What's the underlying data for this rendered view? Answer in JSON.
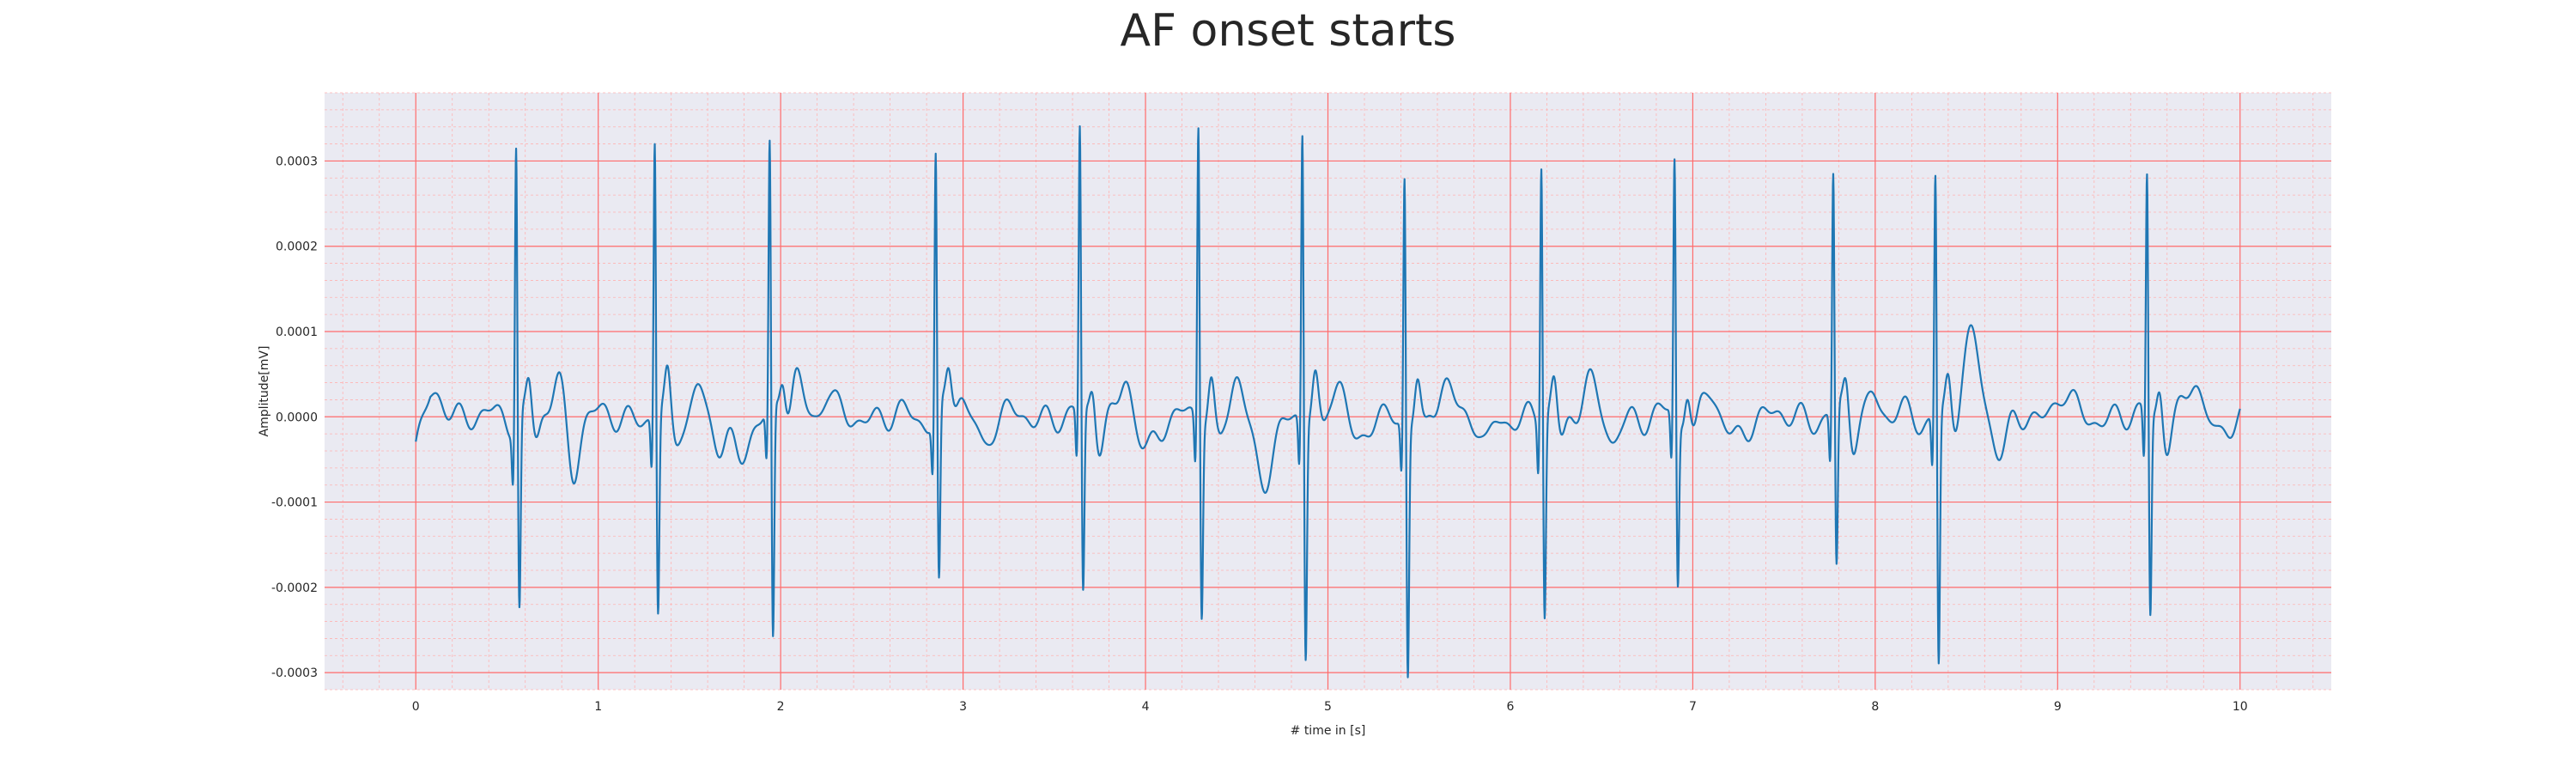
{
  "chart_data": {
    "type": "line",
    "title": "AF onset starts",
    "xlabel": "# time in [s]",
    "ylabel": "Amplitude[mV]",
    "xlim": [
      -0.5,
      10.5
    ],
    "ylim": [
      -0.00032,
      0.00038
    ],
    "x_ticks": [
      0,
      1,
      2,
      3,
      4,
      5,
      6,
      7,
      8,
      9,
      10
    ],
    "x_tick_labels": [
      "0",
      "1",
      "2",
      "3",
      "4",
      "5",
      "6",
      "7",
      "8",
      "9",
      "10"
    ],
    "y_ticks": [
      -0.0003,
      -0.0002,
      -0.0001,
      0.0,
      0.0001,
      0.0002,
      0.0003
    ],
    "y_tick_labels": [
      "-0.0003",
      "-0.0002",
      "-0.0001",
      "0.0000",
      "0.0001",
      "0.0002",
      "0.0003"
    ],
    "grid": true,
    "colors": {
      "background": "#eaeaf2",
      "major_grid": "#ff6b6b",
      "minor_grid": "#ffb3b3",
      "line": "#1f77b4"
    },
    "series": [
      {
        "color": "#1f77b4",
        "beats": [
          {
            "t": 0.55,
            "peak": 0.000338,
            "trough": -0.000228
          },
          {
            "t": 1.31,
            "peak": 0.000333,
            "trough": -0.000235
          },
          {
            "t": 1.94,
            "peak": 0.000318,
            "trough": -0.000282
          },
          {
            "t": 2.85,
            "peak": 0.000315,
            "trough": -0.000208
          },
          {
            "t": 3.64,
            "peak": 0.00034,
            "trough": -0.000218
          },
          {
            "t": 4.29,
            "peak": 0.000355,
            "trough": -0.000227
          },
          {
            "t": 4.86,
            "peak": 0.000346,
            "trough": -0.00028
          },
          {
            "t": 5.42,
            "peak": 0.0003,
            "trough": -0.000296
          },
          {
            "t": 6.17,
            "peak": 0.000312,
            "trough": -0.000235
          },
          {
            "t": 6.9,
            "peak": 0.000306,
            "trough": -0.000198
          },
          {
            "t": 7.77,
            "peak": 0.000285,
            "trough": -0.00019
          },
          {
            "t": 8.33,
            "peak": 0.000295,
            "trough": -0.000295
          },
          {
            "t": 9.49,
            "peak": 0.00029,
            "trough": -0.000237
          }
        ],
        "waves": [
          {
            "t": 0.12,
            "amp": 2.5e-05,
            "w": 0.05
          },
          {
            "t": 0.78,
            "amp": 4.5e-05,
            "w": 0.03
          },
          {
            "t": 0.86,
            "amp": -6e-05,
            "w": 0.03
          },
          {
            "t": 1.55,
            "amp": 3.8e-05,
            "w": 0.03
          },
          {
            "t": 1.66,
            "amp": -3.5e-05,
            "w": 0.035
          },
          {
            "t": 1.77,
            "amp": -5e-05,
            "w": 0.04
          },
          {
            "t": 2.08,
            "amp": 5.2e-05,
            "w": 0.04
          },
          {
            "t": 2.25,
            "amp": 2.8e-05,
            "w": 0.03
          },
          {
            "t": 2.96,
            "amp": 4.5e-05,
            "w": 0.03
          },
          {
            "t": 3.11,
            "amp": -3e-05,
            "w": 0.03
          },
          {
            "t": 3.89,
            "amp": 4.5e-05,
            "w": 0.03
          },
          {
            "t": 4.0,
            "amp": -4.5e-05,
            "w": 0.04
          },
          {
            "t": 4.5,
            "amp": 5e-05,
            "w": 0.035
          },
          {
            "t": 4.64,
            "amp": -7.5e-05,
            "w": 0.05
          },
          {
            "t": 5.06,
            "amp": 5.2e-05,
            "w": 0.045
          },
          {
            "t": 5.16,
            "amp": -4.5e-05,
            "w": 0.04
          },
          {
            "t": 5.65,
            "amp": 4.5e-05,
            "w": 0.04
          },
          {
            "t": 5.87,
            "amp": -4e-05,
            "w": 0.03
          },
          {
            "t": 6.42,
            "amp": 4.5e-05,
            "w": 0.035
          },
          {
            "t": 6.56,
            "amp": -3e-05,
            "w": 0.03
          },
          {
            "t": 7.08,
            "amp": 3.5e-05,
            "w": 0.035
          },
          {
            "t": 7.22,
            "amp": -3e-05,
            "w": 0.04
          },
          {
            "t": 7.99,
            "amp": 3e-05,
            "w": 0.03
          },
          {
            "t": 8.53,
            "amp": 9e-05,
            "w": 0.05
          },
          {
            "t": 8.69,
            "amp": -4.5e-05,
            "w": 0.04
          },
          {
            "t": 9.02,
            "amp": 3e-05,
            "w": 0.04
          },
          {
            "t": 9.75,
            "amp": 4e-05,
            "w": 0.035
          },
          {
            "t": 9.88,
            "amp": -2e-05,
            "w": 0.03
          }
        ]
      }
    ]
  }
}
